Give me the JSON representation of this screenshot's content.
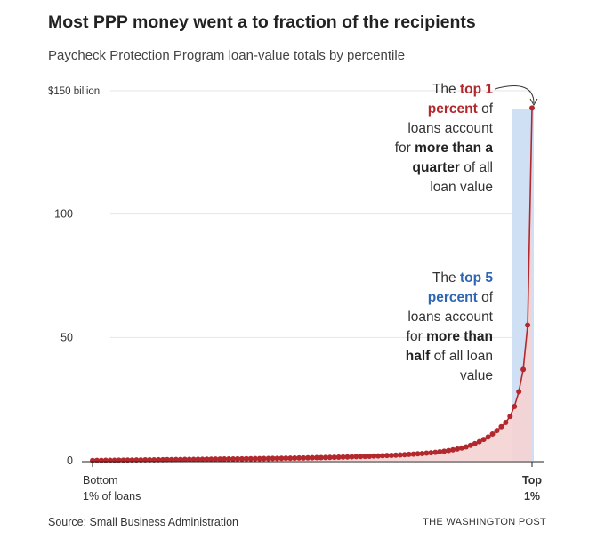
{
  "title": "Most PPP money went a to fraction of the recipients",
  "subtitle": "Paycheck Protection Program loan-value totals by percentile",
  "source": "Source: Small Business Administration",
  "credit": "THE WASHINGTON POST",
  "annotation_top1": {
    "l1a": "The ",
    "l1b": "top 1",
    "l2a": "percent",
    "l2b": " of",
    "l3": "loans account",
    "l4a": "for ",
    "l4b": "more than a",
    "l5a": "quarter",
    "l5b": " of all",
    "l6": "loan value"
  },
  "annotation_top5": {
    "l1a": "The ",
    "l1b": "top 5",
    "l2a": "percent",
    "l2b": " of",
    "l3": "loans account",
    "l4a": "for ",
    "l4b": "more than",
    "l5a": "half",
    "l5b": " of all loan",
    "l6": "value"
  },
  "colors": {
    "line": "#b3282d",
    "area": "#f5d3d3",
    "top5_band": "#cfe0f5",
    "top1_text": "#b3282d",
    "top5_text": "#2f66b3",
    "grid": "#e6e6e6"
  },
  "chart_data": {
    "type": "line",
    "title": "Most PPP money went a to fraction of the recipients",
    "subtitle": "Paycheck Protection Program loan-value totals by percentile",
    "xlabel": "",
    "ylabel": "",
    "x_range": [
      1,
      100
    ],
    "ylim": [
      0,
      150
    ],
    "y_ticks": [
      0,
      50,
      100,
      150
    ],
    "y_tick_labels": [
      "0",
      "50",
      "100",
      "$150 billion"
    ],
    "x_tick_labels": {
      "start_line1": "Bottom",
      "start_line2": "1% of loans",
      "end_line1": "Top",
      "end_line2": "1%"
    },
    "grid": true,
    "highlight_band": "top 5 percentiles",
    "series": [
      {
        "values": [
          0.1,
          0.12,
          0.14,
          0.16,
          0.18,
          0.2,
          0.22,
          0.24,
          0.26,
          0.28,
          0.3,
          0.32,
          0.34,
          0.36,
          0.38,
          0.4,
          0.42,
          0.44,
          0.46,
          0.48,
          0.5,
          0.52,
          0.54,
          0.56,
          0.58,
          0.6,
          0.62,
          0.64,
          0.66,
          0.68,
          0.7,
          0.72,
          0.74,
          0.76,
          0.78,
          0.8,
          0.82,
          0.84,
          0.86,
          0.88,
          0.9,
          0.93,
          0.96,
          0.99,
          1.02,
          1.05,
          1.08,
          1.11,
          1.14,
          1.17,
          1.2,
          1.24,
          1.28,
          1.32,
          1.36,
          1.4,
          1.45,
          1.5,
          1.55,
          1.6,
          1.65,
          1.7,
          1.76,
          1.82,
          1.88,
          1.95,
          2.02,
          2.1,
          2.18,
          2.26,
          2.35,
          2.45,
          2.55,
          2.66,
          2.78,
          2.9,
          3.05,
          3.2,
          3.4,
          3.6,
          3.85,
          4.1,
          4.4,
          4.75,
          5.15,
          5.6,
          6.2,
          6.9,
          7.7,
          8.6,
          9.6,
          10.8,
          12.2,
          13.8,
          15.5,
          18.0,
          22.0,
          28.0,
          37.0,
          55.0,
          143.0
        ]
      }
    ]
  }
}
